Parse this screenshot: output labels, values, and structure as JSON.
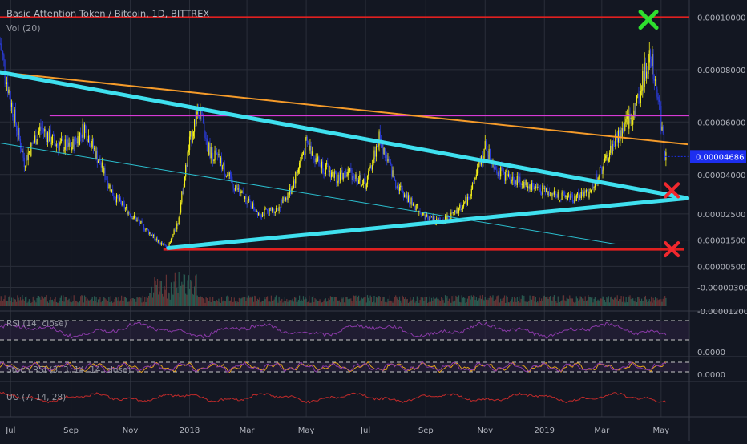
{
  "header": {
    "symbol_title": "Basic Attention Token / Bitcoin, 1D, BITTREX",
    "vol_label": "Vol (20)"
  },
  "colors": {
    "background": "#131722",
    "grid": "#2a2e39",
    "candle_up": "#f5f01a",
    "candle_down": "#2a3bd6",
    "resistance_line": "#e02020",
    "support_line": "#e02020",
    "descending_trendline": "#f59b2a",
    "horizontal_magenta": "#d63ad6",
    "triangle_lines": "#3fe0ef",
    "thin_channel_line": "#2bbfcf",
    "current_price_badge": "#1d2ff0",
    "marker_green": "#2ee02e",
    "marker_red": "#f0282e",
    "rsi_line": "#8a3aa8",
    "stoch_k": "#e0a21e",
    "stoch_d": "#8a3aa8",
    "uo_line": "#c02a2a"
  },
  "chart_data": {
    "type": "line",
    "title": "Basic Attention Token / Bitcoin, 1D, BITTREX",
    "price_axis": {
      "ticks": [
        "0.00010000",
        "0.00008000",
        "0.00006000",
        "0.00004000",
        "0.00002500",
        "0.00001500",
        "0.00000500",
        "-0.00000300",
        "-0.00001200"
      ],
      "current_price": "0.00004686",
      "range": [
        -1.2e-05,
        0.000105
      ]
    },
    "time_axis": {
      "ticks": [
        "Jul",
        "Sep",
        "Nov",
        "2018",
        "Mar",
        "May",
        "Jul",
        "Sep",
        "Nov",
        "2019",
        "Mar",
        "May"
      ]
    },
    "series": [
      {
        "kind": "price",
        "x": [
          "2017-06-20",
          "2017-07-01",
          "2017-07-15",
          "2017-08-01",
          "2017-08-15",
          "2017-09-01",
          "2017-09-15",
          "2017-10-01",
          "2017-10-15",
          "2017-11-01",
          "2017-11-15",
          "2017-12-01",
          "2017-12-10",
          "2017-12-20",
          "2018-01-01",
          "2018-01-10",
          "2018-01-20",
          "2018-02-01",
          "2018-02-15",
          "2018-03-01",
          "2018-03-15",
          "2018-04-01",
          "2018-04-15",
          "2018-05-01",
          "2018-05-15",
          "2018-06-01",
          "2018-06-15",
          "2018-07-01",
          "2018-07-15",
          "2018-08-01",
          "2018-08-15",
          "2018-09-01",
          "2018-09-15",
          "2018-10-01",
          "2018-10-15",
          "2018-11-01",
          "2018-11-15",
          "2018-12-01",
          "2018-12-15",
          "2019-01-01",
          "2019-01-15",
          "2019-02-01",
          "2019-02-15",
          "2019-03-01",
          "2019-03-15",
          "2019-04-01",
          "2019-04-10",
          "2019-04-20",
          "2019-04-28",
          "2019-05-05"
        ],
        "y": [
          9e-05,
          6.8e-05,
          4.5e-05,
          5.8e-05,
          5.2e-05,
          5e-05,
          5.8e-05,
          4.4e-05,
          3.2e-05,
          2.5e-05,
          2e-05,
          1.4e-05,
          1.2e-05,
          2.2e-05,
          5.2e-05,
          6.6e-05,
          5e-05,
          4.5e-05,
          3.6e-05,
          3e-05,
          2.5e-05,
          2.7e-05,
          3.4e-05,
          5.2e-05,
          4.4e-05,
          3.9e-05,
          4.1e-05,
          3.6e-05,
          5.4e-05,
          3.7e-05,
          3e-05,
          2.4e-05,
          2.2e-05,
          2.5e-05,
          3.1e-05,
          5e-05,
          4.1e-05,
          3.8e-05,
          3.6e-05,
          3.4e-05,
          3.2e-05,
          3.1e-05,
          3.3e-05,
          4.2e-05,
          5.3e-05,
          6.2e-05,
          7.2e-05,
          8.8e-05,
          7e-05,
          4.7e-05
        ]
      }
    ],
    "annotations": [
      {
        "type": "horizontal",
        "label": "resistance",
        "y": 0.0001
      },
      {
        "type": "horizontal",
        "label": "magenta level",
        "y": 6.25e-05
      },
      {
        "type": "horizontal",
        "label": "support",
        "y": 1.15e-05
      },
      {
        "type": "trendline",
        "label": "descending orange",
        "from": [
          "2017-06-20",
          7.9e-05
        ],
        "to": [
          "2019-05-28",
          5.15e-05
        ]
      },
      {
        "type": "trendline",
        "label": "triangle upper",
        "from": [
          "2017-06-20",
          7.9e-05
        ],
        "to": [
          "2019-05-28",
          3.1e-05
        ]
      },
      {
        "type": "trendline",
        "label": "triangle lower",
        "from": [
          "2017-12-10",
          1.2e-05
        ],
        "to": [
          "2019-05-28",
          3.1e-05
        ]
      },
      {
        "type": "trendline",
        "label": "thin channel",
        "from": [
          "2017-06-20",
          5.2e-05
        ],
        "to": [
          "2019-03-15",
          1.35e-05
        ]
      },
      {
        "type": "marker",
        "label": "green X",
        "at": [
          "2019-04-18",
          9.9e-05
        ]
      },
      {
        "type": "marker",
        "label": "red X upper",
        "at": [
          "2019-05-12",
          3.4e-05
        ]
      },
      {
        "type": "marker",
        "label": "red X lower",
        "at": [
          "2019-05-12",
          1.15e-05
        ]
      }
    ],
    "indicators": {
      "rsi": {
        "label": "RSI (14, close)",
        "axis_tick": "0.0000"
      },
      "stoch": {
        "label": "Stoch RSI (3, 3, 14, 14, close)",
        "axis_tick": "0.0000"
      },
      "uo": {
        "label": "UO (7, 14, 28)"
      }
    },
    "grid": true,
    "legend": "top-left"
  }
}
